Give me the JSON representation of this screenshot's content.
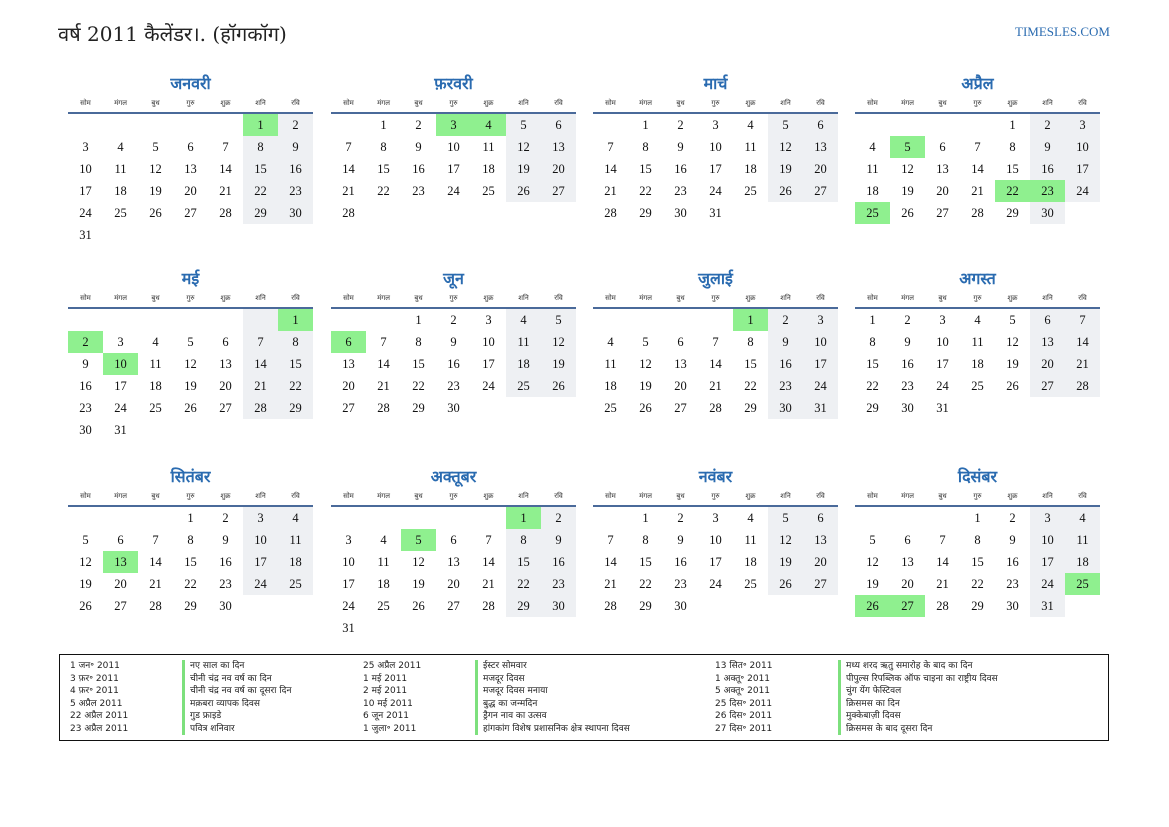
{
  "header": {
    "title": "वर्ष 2011 कैलेंडर।. (हॉगकॉग)",
    "brand": "TIMESLES.COM"
  },
  "weekdays": [
    "सोम",
    "मंगल",
    "बुध",
    "गुरु",
    "शुक्र",
    "शनि",
    "रवि"
  ],
  "months": [
    {
      "name": "जनवरी",
      "offset": 5,
      "days": 31,
      "holidays": [
        1
      ]
    },
    {
      "name": "फ़रवरी",
      "offset": 1,
      "days": 28,
      "holidays": [
        3,
        4
      ]
    },
    {
      "name": "मार्च",
      "offset": 1,
      "days": 31,
      "holidays": []
    },
    {
      "name": "अप्रैल",
      "offset": 4,
      "days": 30,
      "holidays": [
        5,
        22,
        23,
        25
      ]
    },
    {
      "name": "मई",
      "offset": 6,
      "days": 31,
      "holidays": [
        1,
        2,
        10
      ]
    },
    {
      "name": "जून",
      "offset": 2,
      "days": 30,
      "holidays": [
        6
      ]
    },
    {
      "name": "जुलाई",
      "offset": 4,
      "days": 31,
      "holidays": [
        1
      ]
    },
    {
      "name": "अगस्त",
      "offset": 0,
      "days": 31,
      "holidays": []
    },
    {
      "name": "सितंबर",
      "offset": 3,
      "days": 30,
      "holidays": [
        13
      ]
    },
    {
      "name": "अक्तूबर",
      "offset": 5,
      "days": 31,
      "holidays": [
        1,
        5
      ]
    },
    {
      "name": "नवंबर",
      "offset": 1,
      "days": 30,
      "holidays": []
    },
    {
      "name": "दिसंबर",
      "offset": 3,
      "days": 31,
      "holidays": [
        25,
        26,
        27
      ]
    }
  ],
  "legend": [
    {
      "date": "1 जन॰ 2011",
      "name": "नए साल का दिन"
    },
    {
      "date": "3 फ़र॰ 2011",
      "name": "चीनी चंद्र नव वर्ष का दिन"
    },
    {
      "date": "4 फ़र॰ 2011",
      "name": "चीनी चंद्र नव वर्ष का दूसरा दिन"
    },
    {
      "date": "5 अप्रैल 2011",
      "name": "मक़बरा व्यापक दिवस"
    },
    {
      "date": "22 अप्रैल 2011",
      "name": "गुड फ्राइडे"
    },
    {
      "date": "23 अप्रैल 2011",
      "name": "पवित्र शनिवार"
    },
    {
      "date": "25 अप्रैल 2011",
      "name": "ईस्टर सोमवार"
    },
    {
      "date": "1 मई 2011",
      "name": "मजदूर दिवस"
    },
    {
      "date": "2 मई 2011",
      "name": "मजदूर दिवस मनाया"
    },
    {
      "date": "10 मई 2011",
      "name": "बुद्ध का जन्मदिन"
    },
    {
      "date": "6 जून 2011",
      "name": "ड्रैगन नाव का उत्सव"
    },
    {
      "date": "1 जुला॰ 2011",
      "name": "हांगकांग विशेष प्रशासनिक क्षेत्र स्थापना दिवस"
    },
    {
      "date": "13 सित॰ 2011",
      "name": "मध्य शरद ऋतु समारोह के बाद का दिन"
    },
    {
      "date": "1 अक्तू॰ 2011",
      "name": "पीपुल्स रिपब्लिक ऑफ चाइना का राष्ट्रीय दिवस"
    },
    {
      "date": "5 अक्तू॰ 2011",
      "name": "चुंग येंग फेस्टिवल"
    },
    {
      "date": "25 दिस॰ 2011",
      "name": "क्रिसमस का दिन"
    },
    {
      "date": "26 दिस॰ 2011",
      "name": "मुक्केबाज़ी दिवस"
    },
    {
      "date": "27 दिस॰ 2011",
      "name": "क्रिसमस के बाद दूसरा दिन"
    }
  ]
}
